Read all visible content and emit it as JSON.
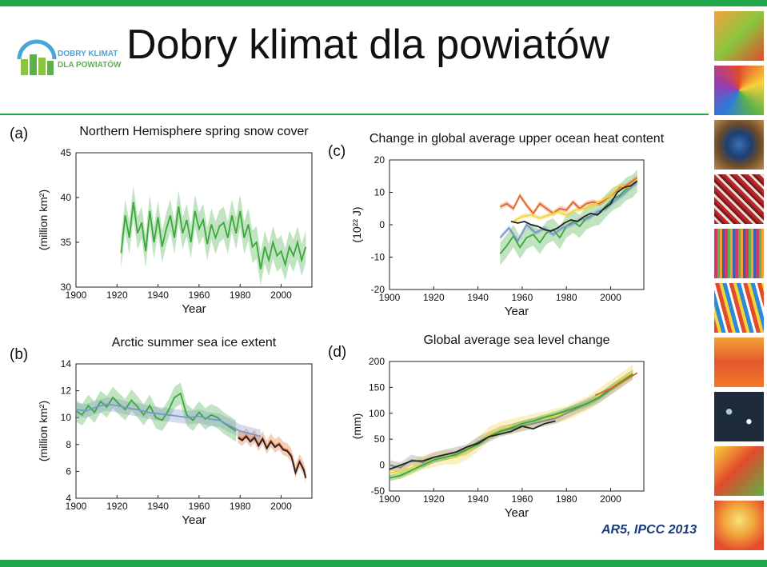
{
  "header": {
    "title": "Dobry klimat dla powiatów",
    "logo_line1": "DOBRY KLIMAT",
    "logo_line2": "DLA POWIATÓW"
  },
  "credit": "AR5, IPCC 2013",
  "colors": {
    "accent": "#21a54a",
    "credit": "#1a3a7a"
  },
  "chart_data": [
    {
      "panel": "(a)",
      "type": "line",
      "title": "Northern Hemisphere spring snow cover",
      "xlabel": "Year",
      "ylabel": "(million km²)",
      "xlim": [
        1900,
        2015
      ],
      "ylim": [
        30,
        45
      ],
      "xticks": [
        1900,
        1920,
        1940,
        1960,
        1980,
        2000
      ],
      "yticks": [
        30,
        35,
        40,
        45
      ],
      "series": [
        {
          "color": "#3aa83a",
          "band": 1.8,
          "x": [
            1922,
            1924,
            1926,
            1928,
            1930,
            1932,
            1934,
            1936,
            1938,
            1940,
            1942,
            1944,
            1946,
            1948,
            1950,
            1952,
            1954,
            1956,
            1958,
            1960,
            1962,
            1964,
            1966,
            1968,
            1970,
            1972,
            1974,
            1976,
            1978,
            1980,
            1982,
            1984,
            1986,
            1988,
            1990,
            1992,
            1994,
            1996,
            1998,
            2000,
            2002,
            2004,
            2006,
            2008,
            2010,
            2012
          ],
          "y": [
            33.8,
            38.0,
            35.5,
            39.5,
            36.0,
            37.2,
            34.0,
            38.5,
            35.0,
            37.8,
            34.5,
            36.5,
            38.0,
            35.5,
            39.0,
            36.0,
            37.5,
            35.0,
            38.5,
            36.5,
            37.5,
            34.8,
            37.0,
            35.5,
            36.8,
            37.2,
            35.5,
            38.0,
            36.0,
            38.5,
            35.5,
            37.0,
            34.5,
            35.0,
            32.0,
            34.5,
            33.0,
            35.0,
            33.5,
            34.0,
            32.5,
            34.5,
            33.5,
            35.0,
            33.0,
            34.5
          ]
        }
      ]
    },
    {
      "panel": "(b)",
      "type": "line",
      "title": "Arctic summer sea ice extent",
      "xlabel": "Year",
      "ylabel": "(million km²)",
      "xlim": [
        1900,
        2015
      ],
      "ylim": [
        4,
        14
      ],
      "xticks": [
        1900,
        1920,
        1940,
        1960,
        1980,
        2000
      ],
      "yticks": [
        4,
        6,
        8,
        10,
        12,
        14
      ],
      "series": [
        {
          "color": "#3aa83a",
          "band": 0.8,
          "x": [
            1900,
            1903,
            1906,
            1909,
            1912,
            1915,
            1918,
            1921,
            1924,
            1927,
            1930,
            1933,
            1936,
            1939,
            1942,
            1945,
            1948,
            1951,
            1954,
            1957,
            1960,
            1963,
            1966,
            1969,
            1972,
            1975,
            1978
          ],
          "y": [
            10.5,
            10.2,
            10.9,
            10.4,
            11.2,
            10.8,
            11.5,
            11.0,
            10.6,
            11.3,
            10.8,
            10.2,
            10.9,
            10.0,
            9.8,
            10.5,
            11.5,
            11.8,
            10.2,
            9.8,
            10.4,
            9.9,
            10.2,
            10.0,
            9.6,
            9.3,
            9.0
          ]
        },
        {
          "color": "#7b96c8",
          "band": 0.5,
          "x": [
            1900,
            1905,
            1910,
            1915,
            1920,
            1925,
            1930,
            1935,
            1940,
            1945,
            1950,
            1955,
            1960,
            1965,
            1970,
            1975,
            1980,
            1985,
            1990
          ],
          "y": [
            10.6,
            10.5,
            10.8,
            11.0,
            10.9,
            10.7,
            10.6,
            10.4,
            10.3,
            10.2,
            10.1,
            10.0,
            10.1,
            9.9,
            9.8,
            9.4,
            9.0,
            8.8,
            8.6
          ]
        },
        {
          "color": "#e0652a",
          "band": 0.5,
          "x": [
            1979,
            1981,
            1983,
            1985,
            1987,
            1989,
            1991,
            1993,
            1995,
            1997,
            1999,
            2001,
            2003,
            2005,
            2007,
            2009,
            2011,
            2012
          ],
          "y": [
            8.6,
            8.4,
            8.7,
            8.3,
            8.6,
            8.0,
            8.5,
            7.8,
            8.3,
            7.9,
            8.1,
            7.7,
            7.6,
            7.2,
            6.0,
            6.8,
            6.2,
            5.6
          ]
        },
        {
          "color": "#222222",
          "band": 0,
          "x": [
            1979,
            1981,
            1983,
            1985,
            1987,
            1989,
            1991,
            1993,
            1995,
            1997,
            1999,
            2001,
            2003,
            2005,
            2007,
            2009,
            2011,
            2012
          ],
          "y": [
            8.5,
            8.3,
            8.6,
            8.2,
            8.5,
            7.9,
            8.4,
            7.7,
            8.2,
            7.8,
            8.0,
            7.6,
            7.5,
            7.1,
            5.9,
            6.7,
            6.1,
            5.5
          ]
        }
      ]
    },
    {
      "panel": "(c)",
      "type": "line",
      "title": "Change in global average upper ocean heat content",
      "xlabel": "Year",
      "ylabel": "(10²² J)",
      "xlim": [
        1900,
        2015
      ],
      "ylim": [
        -20,
        20
      ],
      "xticks": [
        1900,
        1920,
        1940,
        1960,
        1980,
        2000
      ],
      "yticks": [
        -20,
        -10,
        0,
        10,
        20
      ],
      "series": [
        {
          "color": "#3aa83a",
          "band": 3.5,
          "x": [
            1950,
            1953,
            1956,
            1959,
            1962,
            1965,
            1968,
            1971,
            1974,
            1977,
            1980,
            1983,
            1986,
            1989,
            1992,
            1995,
            1998,
            2001,
            2004,
            2007,
            2010,
            2012
          ],
          "y": [
            -9.0,
            -6.5,
            -3.5,
            -7.0,
            -4.0,
            -3.0,
            -5.5,
            -2.5,
            -1.5,
            -4.0,
            -0.5,
            1.0,
            -0.5,
            2.0,
            3.0,
            3.5,
            6.0,
            8.0,
            9.0,
            11.0,
            12.0,
            13.5
          ]
        },
        {
          "color": "#e0652a",
          "band": 0.8,
          "x": [
            1950,
            1953,
            1956,
            1959,
            1962,
            1965,
            1968,
            1971,
            1974,
            1977,
            1980,
            1983,
            1986,
            1989,
            1992,
            1995,
            1998,
            2001,
            2004,
            2007,
            2010,
            2012
          ],
          "y": [
            5.5,
            6.5,
            5.0,
            9.0,
            6.0,
            3.5,
            6.5,
            5.0,
            3.5,
            5.0,
            4.5,
            7.0,
            5.0,
            6.5,
            7.0,
            6.5,
            8.0,
            9.5,
            11.5,
            12.0,
            13.5,
            14.5
          ]
        },
        {
          "color": "#f2d33a",
          "band": 0.8,
          "x": [
            1956,
            1960,
            1964,
            1968,
            1972,
            1976,
            1980,
            1984,
            1988,
            1992,
            1996,
            2000,
            2004,
            2008,
            2012
          ],
          "y": [
            1.0,
            2.5,
            3.0,
            2.0,
            3.0,
            4.0,
            3.0,
            4.5,
            5.0,
            6.0,
            7.5,
            9.0,
            12.0,
            11.5,
            14.0
          ]
        },
        {
          "color": "#7b96c8",
          "band": 0.8,
          "x": [
            1950,
            1954,
            1958,
            1962,
            1966,
            1970,
            1974,
            1978,
            1982,
            1986,
            1990,
            1994,
            1998,
            2002,
            2006,
            2010,
            2012
          ],
          "y": [
            -4.0,
            -1.0,
            -5.0,
            0.0,
            -2.5,
            -1.0,
            -3.0,
            -1.0,
            0.0,
            1.5,
            2.0,
            4.0,
            5.0,
            7.5,
            9.5,
            12.0,
            13.0
          ]
        },
        {
          "color": "#222222",
          "band": 0,
          "x": [
            1955,
            1958,
            1961,
            1964,
            1967,
            1970,
            1973,
            1976,
            1979,
            1982,
            1985,
            1988,
            1991,
            1994,
            1997,
            2000,
            2003,
            2006,
            2009,
            2012
          ],
          "y": [
            1.0,
            0.5,
            1.0,
            0.0,
            -0.5,
            -1.5,
            -2.0,
            -1.0,
            0.5,
            1.5,
            1.0,
            2.5,
            3.5,
            3.0,
            5.0,
            6.5,
            10.0,
            11.5,
            12.0,
            13.5
          ]
        }
      ]
    },
    {
      "panel": "(d)",
      "type": "line",
      "title": "Global average sea level change",
      "xlabel": "Year",
      "ylabel": "(mm)",
      "xlim": [
        1900,
        2015
      ],
      "ylim": [
        -50,
        200
      ],
      "xticks": [
        1900,
        1920,
        1940,
        1960,
        1980,
        2000
      ],
      "yticks": [
        -50,
        0,
        50,
        100,
        150,
        200
      ],
      "series": [
        {
          "color": "#f2d33a",
          "band": 14,
          "x": [
            1900,
            1905,
            1910,
            1915,
            1920,
            1925,
            1930,
            1935,
            1940,
            1945,
            1950,
            1955,
            1960,
            1965,
            1970,
            1975,
            1980,
            1985,
            1990,
            1995,
            2000,
            2005,
            2010
          ],
          "y": [
            -15,
            -12,
            -5,
            5,
            10,
            15,
            15,
            25,
            40,
            60,
            70,
            75,
            80,
            85,
            90,
            95,
            100,
            110,
            120,
            135,
            150,
            165,
            180
          ]
        },
        {
          "color": "#888888",
          "band": 10,
          "x": [
            1900,
            1905,
            1910,
            1915,
            1920,
            1925,
            1930,
            1935,
            1940,
            1945,
            1950,
            1955,
            1960,
            1965,
            1970,
            1975,
            1980,
            1985,
            1990,
            1995,
            2000,
            2005,
            2010
          ],
          "y": [
            0,
            -5,
            10,
            5,
            15,
            20,
            25,
            30,
            45,
            55,
            65,
            70,
            75,
            80,
            85,
            90,
            100,
            110,
            120,
            130,
            145,
            160,
            175
          ]
        },
        {
          "color": "#3aa83a",
          "band": 6,
          "x": [
            1900,
            1905,
            1910,
            1915,
            1920,
            1925,
            1930,
            1935,
            1940,
            1945,
            1950,
            1955,
            1960,
            1965,
            1970,
            1975,
            1980,
            1985,
            1990,
            1995,
            2000,
            2005,
            2010
          ],
          "y": [
            -25,
            -20,
            -10,
            0,
            10,
            15,
            20,
            30,
            40,
            55,
            65,
            72,
            80,
            85,
            92,
            98,
            105,
            112,
            120,
            132,
            148,
            162,
            176
          ]
        },
        {
          "color": "#222222",
          "band": 0,
          "x": [
            1900,
            1905,
            1910,
            1915,
            1920,
            1925,
            1930,
            1935,
            1940,
            1945,
            1950,
            1955,
            1960,
            1965,
            1970,
            1975
          ],
          "y": [
            -8,
            0,
            8,
            8,
            15,
            20,
            25,
            35,
            42,
            55,
            60,
            65,
            75,
            70,
            80,
            85
          ]
        },
        {
          "color": "#e0652a",
          "band": 0,
          "x": [
            1993,
            1997,
            2001,
            2005,
            2009,
            2012
          ],
          "y": [
            135,
            142,
            150,
            160,
            170,
            178
          ]
        }
      ]
    }
  ]
}
